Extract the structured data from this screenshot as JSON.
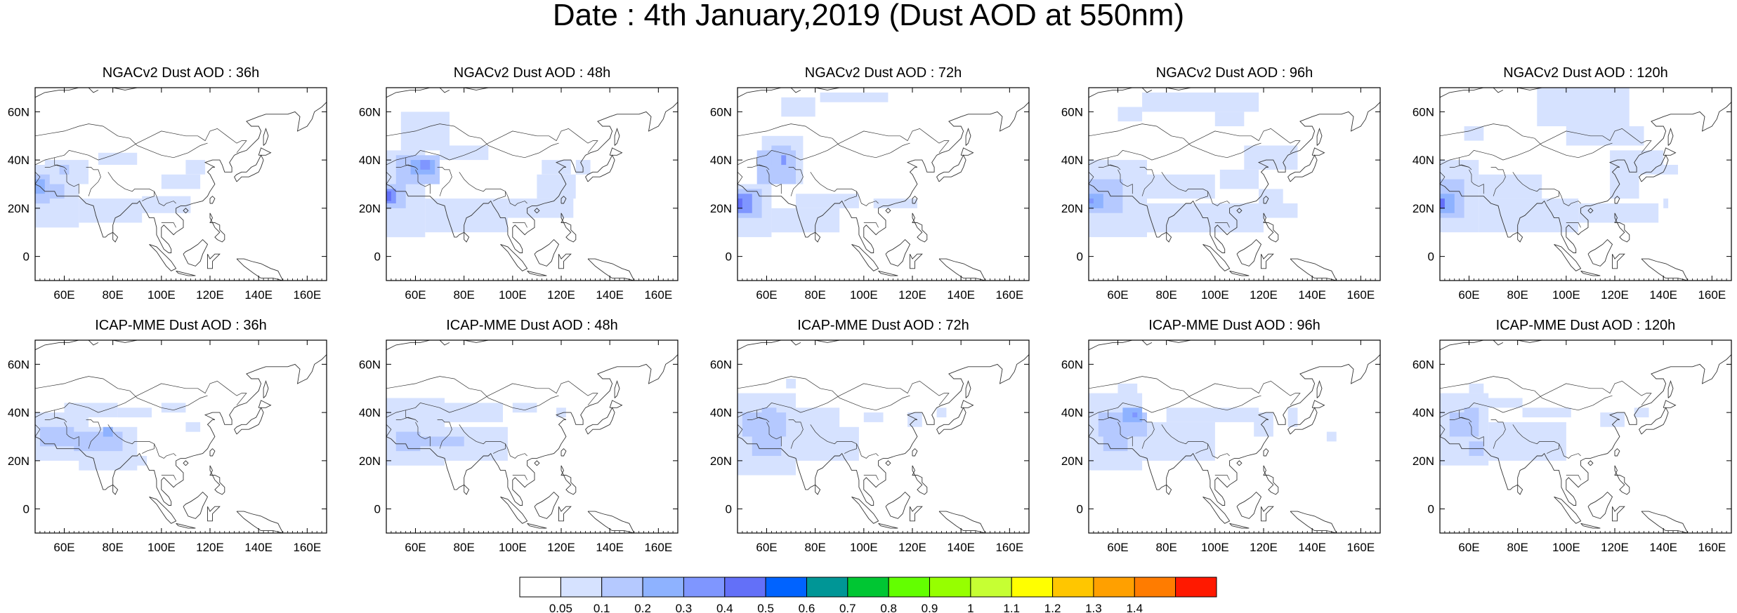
{
  "title": "Date : 4th January,2019 (Dust AOD at 550nm)",
  "panels": [
    {
      "title": "NGACv2 Dust AOD : 36h"
    },
    {
      "title": "NGACv2 Dust AOD : 48h"
    },
    {
      "title": "NGACv2 Dust AOD : 72h"
    },
    {
      "title": "NGACv2 Dust AOD : 96h"
    },
    {
      "title": "NGACv2 Dust AOD : 120h"
    },
    {
      "title": "ICAP-MME Dust AOD : 36h"
    },
    {
      "title": "ICAP-MME Dust AOD : 48h"
    },
    {
      "title": "ICAP-MME Dust AOD : 72h"
    },
    {
      "title": "ICAP-MME Dust AOD : 96h"
    },
    {
      "title": "ICAP-MME Dust AOD : 120h"
    }
  ],
  "map_axes": {
    "lon_range": [
      48,
      168
    ],
    "lat_range": [
      -10,
      70
    ],
    "lon_ticks": [
      "60E",
      "80E",
      "100E",
      "120E",
      "140E",
      "160E"
    ],
    "lon_tick_values": [
      60,
      80,
      100,
      120,
      140,
      160
    ],
    "lat_ticks": [
      "0",
      "20N",
      "40N",
      "60N"
    ],
    "lat_tick_values": [
      0,
      20,
      40,
      60
    ]
  },
  "colorbar": {
    "labels": [
      "0.05",
      "0.1",
      "0.2",
      "0.3",
      "0.4",
      "0.5",
      "0.6",
      "0.7",
      "0.8",
      "0.9",
      "1",
      "1.1",
      "1.2",
      "1.3",
      "1.4"
    ],
    "colors": [
      "#ffffff",
      "#d6e2ff",
      "#b5c9ff",
      "#8eb2ff",
      "#7f96ff",
      "#6370f8",
      "#0063ff",
      "#009696",
      "#00c633",
      "#63ff00",
      "#96ff00",
      "#c6ff33",
      "#ffff00",
      "#ffc600",
      "#ffa000",
      "#ff7c00",
      "#ff1900"
    ]
  },
  "colors": {
    "coastline": "#333333",
    "frame": "#000000"
  }
}
